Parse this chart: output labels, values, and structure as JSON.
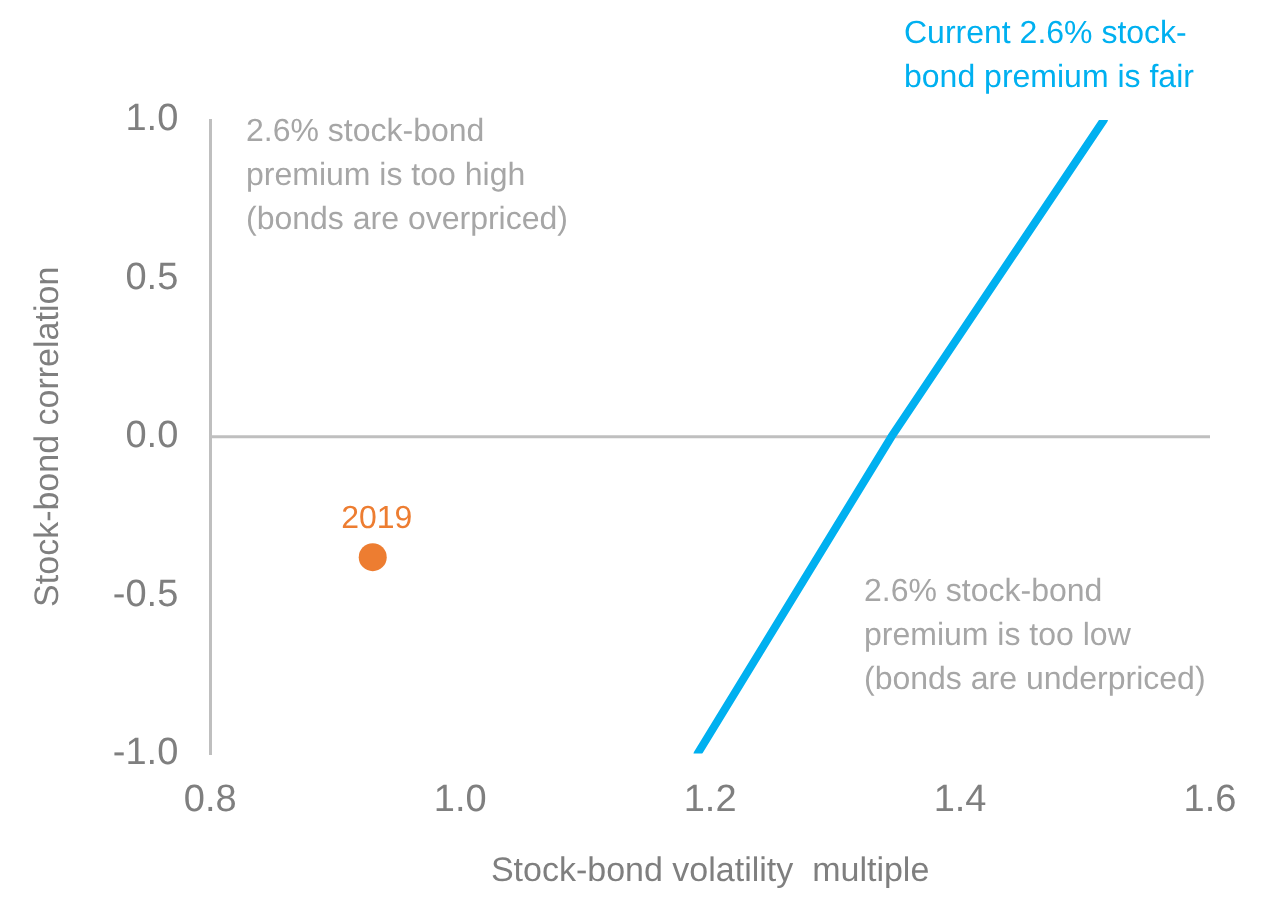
{
  "chart_data": {
    "type": "line",
    "xlabel": "Stock-bond volatility  multiple",
    "ylabel": "Stock-bond correlation",
    "xlim": [
      0.8,
      1.6
    ],
    "xticks": [
      {
        "value": 0.8,
        "label": "0.8"
      },
      {
        "value": 1.0,
        "label": "1.0"
      },
      {
        "value": 1.2,
        "label": "1.2"
      },
      {
        "value": 1.4,
        "label": "1.4"
      },
      {
        "value": 1.6,
        "label": "1.6"
      }
    ],
    "ylim": [
      -1.0,
      1.0
    ],
    "yticks": [
      {
        "value": -1.0,
        "label": "-1.0"
      },
      {
        "value": -0.5,
        "label": "-0.5"
      },
      {
        "value": 0,
        "label": "0.0"
      },
      {
        "value": 0.5,
        "label": "0.5"
      },
      {
        "value": 1.0,
        "label": "1.0"
      }
    ],
    "series": [
      {
        "name": "Current 2.6% stock-bond premium is fair",
        "color": "#00b0f0",
        "x": [
          1.19,
          1.345,
          1.515
        ],
        "values": [
          -1.0,
          0.0,
          1.0
        ],
        "marker": "none"
      },
      {
        "type": "scatter",
        "name": "2019",
        "color": "#ed7d31",
        "x": [
          0.93
        ],
        "values": [
          -0.38
        ],
        "marker": "circle"
      }
    ],
    "ref_lines": [
      {
        "axis": "y",
        "value": 0,
        "color": "#bfbfbf"
      }
    ],
    "annotations": [
      "2.6% stock-bond premium is too high (bonds are overpriced)",
      "2.6% stock-bond premium is too low (bonds are underpriced)"
    ],
    "grid": false,
    "legend": false
  }
}
